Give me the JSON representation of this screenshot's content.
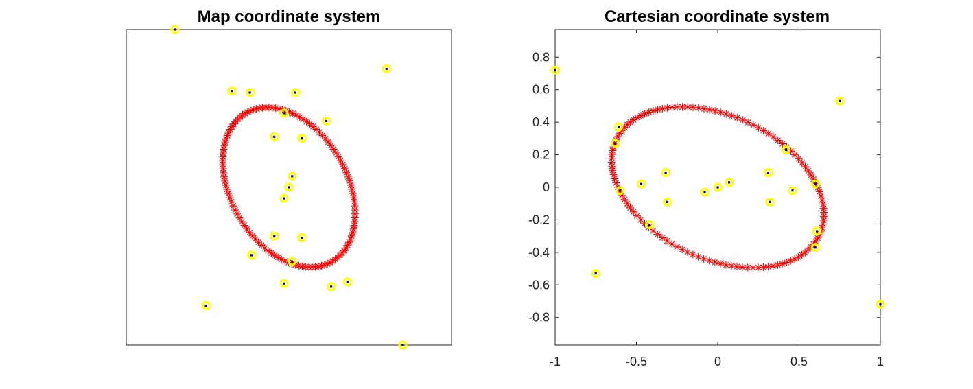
{
  "chart_data": [
    {
      "type": "scatter",
      "title": "Map coordinate system",
      "xlabel": "",
      "ylabel": "",
      "xlim": [
        -1,
        1
      ],
      "ylim": [
        -1,
        1
      ],
      "y_direction": "down",
      "show_ticks": false,
      "colors": {
        "ellipse": "#ff0000",
        "ring": "#ffff00",
        "dot": "#00008b"
      },
      "ellipse": {
        "center": [
          0,
          0
        ],
        "semi_axis_major": 0.54,
        "semi_axis_minor": 0.36,
        "angle_deg": 62,
        "n_markers": 120,
        "marker": "asterisk"
      },
      "points": {
        "x": [
          -0.7,
          0.6,
          -0.35,
          -0.24,
          0.04,
          -0.03,
          0.23,
          -0.09,
          0.08,
          0.02,
          0.0,
          -0.03,
          -0.09,
          0.08,
          -0.23,
          0.02,
          -0.03,
          0.26,
          0.36,
          -0.51,
          0.7
        ],
        "y": [
          -1.0,
          -0.75,
          -0.61,
          -0.6,
          -0.6,
          -0.47,
          -0.42,
          -0.32,
          -0.31,
          -0.07,
          0.0,
          0.07,
          0.31,
          0.32,
          0.43,
          0.47,
          0.61,
          0.63,
          0.6,
          0.75,
          1.0
        ]
      }
    },
    {
      "type": "scatter",
      "title": "Cartesian coordinate system",
      "xlabel": "",
      "ylabel": "",
      "xlim": [
        -1,
        1
      ],
      "ylim": [
        -0.97,
        0.97
      ],
      "y_direction": "up",
      "show_ticks": true,
      "xticks": [
        -1,
        -0.5,
        0,
        0.5,
        1
      ],
      "xtick_labels": [
        "-1",
        "-0.5",
        "0",
        "0.5",
        "1"
      ],
      "yticks": [
        0.8,
        0.6,
        0.4,
        0.2,
        0,
        -0.2,
        -0.4,
        -0.6,
        -0.8
      ],
      "ytick_labels": [
        "0.8",
        "0.6",
        "0.4",
        "0.2",
        "0",
        "-0.2",
        "-0.4",
        "-0.6",
        "-0.8"
      ],
      "colors": {
        "ellipse": "#ff0000",
        "ring": "#ffff00",
        "dot": "#00008b"
      },
      "ellipse": {
        "center": [
          0,
          0
        ],
        "semi_axis_major": 0.69,
        "semi_axis_minor": 0.44,
        "angle_deg": -25,
        "n_markers": 120,
        "marker": "asterisk"
      },
      "points": {
        "x": [
          -1.0,
          0.75,
          -0.61,
          -0.63,
          -0.6,
          -0.47,
          -0.32,
          -0.31,
          -0.42,
          -0.08,
          0.0,
          0.07,
          0.31,
          0.32,
          0.42,
          0.46,
          0.6,
          0.61,
          0.6,
          -0.75,
          1.0
        ],
        "y": [
          0.72,
          0.53,
          0.37,
          0.27,
          -0.02,
          0.02,
          0.09,
          -0.09,
          -0.23,
          -0.03,
          0.0,
          0.03,
          0.09,
          -0.09,
          0.23,
          -0.02,
          0.02,
          -0.27,
          -0.37,
          -0.53,
          -0.72
        ]
      }
    }
  ]
}
